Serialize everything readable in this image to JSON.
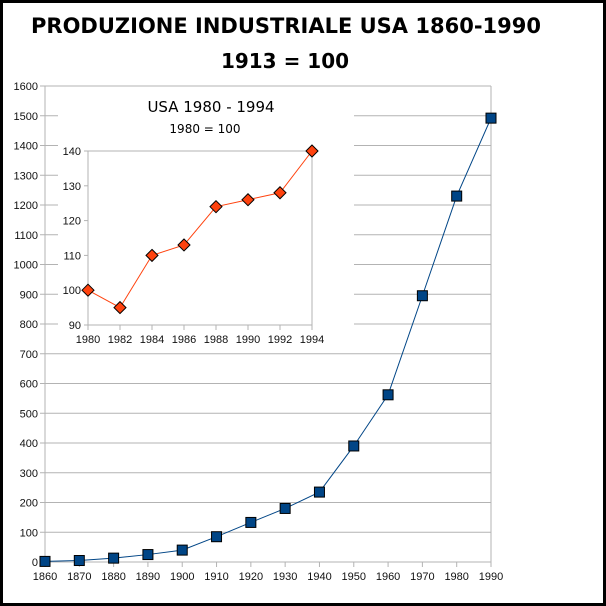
{
  "chart_data": [
    {
      "type": "line",
      "title": "PRODUZIONE INDUSTRIALE USA 1860-1990",
      "subtitle": "1913 = 100",
      "xlabel": "",
      "ylabel": "",
      "x": [
        1860,
        1870,
        1880,
        1890,
        1900,
        1910,
        1920,
        1930,
        1940,
        1950,
        1960,
        1970,
        1980,
        1990
      ],
      "series": [
        {
          "name": "USA",
          "values": [
            2,
            5,
            13,
            25,
            40,
            85,
            133,
            180,
            235,
            390,
            562,
            895,
            1230,
            1492
          ],
          "color": "#004586",
          "marker": "square"
        }
      ],
      "ylim": [
        0,
        1600
      ],
      "yticks": [
        0,
        100,
        200,
        300,
        400,
        500,
        600,
        700,
        800,
        900,
        1000,
        1100,
        1200,
        1300,
        1400,
        1500,
        1600
      ],
      "xlim": [
        1860,
        1990
      ],
      "grid": true,
      "legend": "none"
    },
    {
      "type": "line",
      "title": "USA 1980 - 1994",
      "subtitle": "1980 = 100",
      "x": [
        1980,
        1982,
        1984,
        1986,
        1988,
        1990,
        1992,
        1994
      ],
      "series": [
        {
          "name": "USA",
          "values": [
            100,
            95,
            110,
            113,
            124,
            126,
            128,
            140
          ],
          "color": "#ff420e",
          "marker": "diamond"
        }
      ],
      "ylim": [
        90,
        140
      ],
      "yticks": [
        90,
        100,
        110,
        120,
        130,
        140
      ],
      "xlim": [
        1980,
        1994
      ],
      "grid": false,
      "legend": "none",
      "placement": "inset top-left"
    }
  ]
}
